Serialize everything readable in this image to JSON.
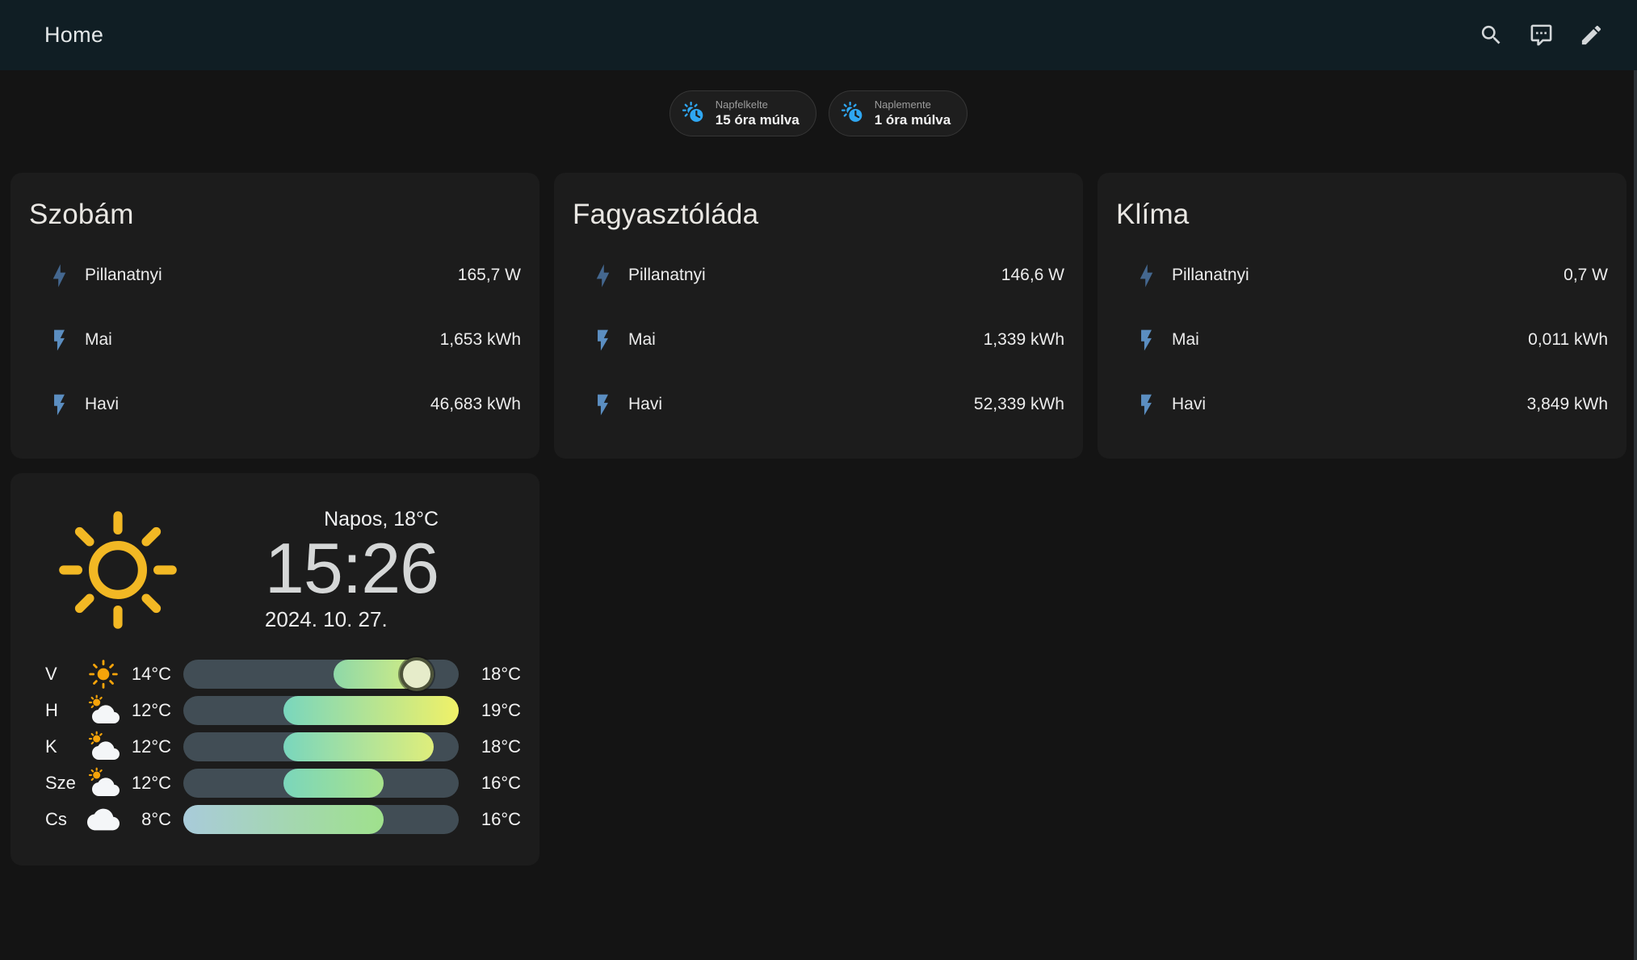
{
  "header": {
    "title": "Home"
  },
  "icons": [
    "search-icon",
    "assist-icon",
    "edit-icon",
    "sun-clock-icon",
    "lightning-bolt-icon",
    "flash-icon",
    "sun-icon",
    "weather-sunny-icon",
    "weather-partly-cloudy-icon",
    "weather-cloudy-icon"
  ],
  "chips": [
    {
      "label": "Napfelkelte",
      "value": "15 óra múlva"
    },
    {
      "label": "Naplemente",
      "value": "1 óra múlva"
    }
  ],
  "energy_cards": [
    {
      "title": "Szobám",
      "rows": [
        {
          "label": "Pillanatnyi",
          "value": "165,7 W"
        },
        {
          "label": "Mai",
          "value": "1,653 kWh"
        },
        {
          "label": "Havi",
          "value": "46,683 kWh"
        }
      ]
    },
    {
      "title": "Fagyasztóláda",
      "rows": [
        {
          "label": "Pillanatnyi",
          "value": "146,6 W"
        },
        {
          "label": "Mai",
          "value": "1,339 kWh"
        },
        {
          "label": "Havi",
          "value": "52,339 kWh"
        }
      ]
    },
    {
      "title": "Klíma",
      "rows": [
        {
          "label": "Pillanatnyi",
          "value": "0,7 W"
        },
        {
          "label": "Mai",
          "value": "0,011 kWh"
        },
        {
          "label": "Havi",
          "value": "3,849 kWh"
        }
      ]
    }
  ],
  "weather_card": {
    "condition": "Napos, 18°C",
    "time": "15:26",
    "date": "2024. 10. 27.",
    "temp_scale": {
      "min": 8,
      "max": 19
    },
    "forecast": [
      {
        "day": "V",
        "icon": "sunny",
        "low": 14,
        "high": 18,
        "low_label": "14°C",
        "high_label": "18°C",
        "bar_start": "#8ed8a8",
        "bar_end": "#dff07d",
        "marker_temp": 18
      },
      {
        "day": "H",
        "icon": "partly-cloudy",
        "low": 12,
        "high": 19,
        "low_label": "12°C",
        "high_label": "19°C",
        "bar_start": "#79d6bd",
        "bar_end": "#f0f168"
      },
      {
        "day": "K",
        "icon": "partly-cloudy",
        "low": 12,
        "high": 18,
        "low_label": "12°C",
        "high_label": "18°C",
        "bar_start": "#79d6bd",
        "bar_end": "#dfee7b"
      },
      {
        "day": "Sze",
        "icon": "partly-cloudy",
        "low": 12,
        "high": 16,
        "low_label": "12°C",
        "high_label": "16°C",
        "bar_start": "#7bd6bb",
        "bar_end": "#a8e28c"
      },
      {
        "day": "Cs",
        "icon": "cloudy",
        "low": 8,
        "high": 16,
        "low_label": "8°C",
        "high_label": "16°C",
        "bar_start": "#a9cbda",
        "bar_end": "#9fe18c"
      }
    ]
  },
  "colors": {
    "appbar_bg": "#101e24",
    "page_bg": "#141414",
    "card_bg": "#1c1c1c",
    "chip_icon": "#2fa7f2",
    "bolt": "#44678f",
    "flash": "#5b8ec1",
    "sun": "#f2b824",
    "bar_track": "#414d55",
    "marker": "#e6ecca"
  }
}
